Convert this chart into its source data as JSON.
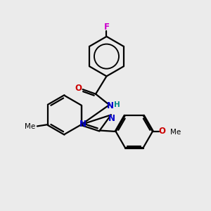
{
  "bg_color": "#ebebeb",
  "bond_color": "#000000",
  "atom_colors": {
    "N": "#0000cc",
    "O": "#cc0000",
    "F": "#cc00cc",
    "C": "#000000",
    "H": "#008888"
  },
  "figsize": [
    3.0,
    3.0
  ],
  "dpi": 100,
  "lw": 1.6,
  "fs": 8.5,
  "fs_small": 7.5
}
